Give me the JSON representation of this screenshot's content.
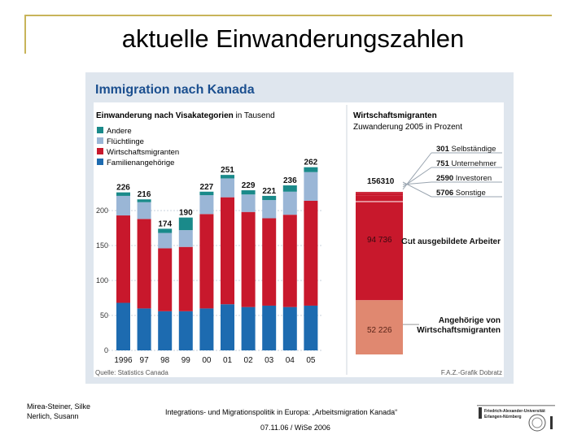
{
  "slide": {
    "title": "aktuelle Einwanderungszahlen",
    "footer_authors_line1": "Mirea-Steiner, Silke",
    "footer_authors_line2": "Nerlich, Susann",
    "footer_course": "Integrations- und Migrationspolitik in Europa: „Arbeitsmigration Kanada“",
    "footer_date": "07.11.06 / WiSe 2006",
    "logo_line1": "Friedrich-Alexander-Universität",
    "logo_line2": "Erlangen-Nürnberg"
  },
  "colors": {
    "andere": "#1a8a8a",
    "fluechtlinge": "#9ab6d6",
    "wirtschaftsmigranten": "#c8182c",
    "familienangehoerige": "#1d6bb0",
    "angehoerige_bar": "#e08870",
    "figure_bg": "#dfe6ee",
    "title_blue": "#1b4f8f"
  },
  "chart_data": [
    {
      "type": "bar",
      "figure_title": "Immigration nach Kanada",
      "title": "Einwanderung nach Visakategorien",
      "title_unit": "in Tausend",
      "categories": [
        "1996",
        "97",
        "98",
        "99",
        "00",
        "01",
        "02",
        "03",
        "04",
        "05"
      ],
      "series": [
        {
          "name": "Familienangehörige",
          "values": [
            68,
            60,
            56,
            56,
            60,
            66,
            62,
            64,
            62,
            64
          ]
        },
        {
          "name": "Wirtschaftsmigranten",
          "values": [
            125,
            128,
            90,
            92,
            135,
            153,
            136,
            125,
            132,
            150
          ]
        },
        {
          "name": "Flüchtlinge",
          "values": [
            28,
            24,
            22,
            24,
            27,
            27,
            25,
            26,
            33,
            41
          ]
        },
        {
          "name": "Andere",
          "values": [
            5,
            4,
            6,
            18,
            5,
            5,
            6,
            6,
            9,
            7
          ]
        }
      ],
      "totals": [
        226,
        216,
        174,
        190,
        227,
        251,
        229,
        221,
        236,
        262
      ],
      "legend": [
        "Andere",
        "Flüchtlinge",
        "Wirtschaftsmigranten",
        "Familienangehörige"
      ],
      "yticks": [
        0,
        50,
        100,
        150,
        200
      ],
      "ylim": [
        0,
        270
      ],
      "source": "Quelle: Statistics Canada"
    },
    {
      "type": "bar",
      "title": "Wirtschaftsmigranten",
      "subtitle": "Zuwanderung 2005 in Prozent",
      "total_label": "156310",
      "stacked_segments": [
        {
          "name": "Angehörige von Wirtschaftsmigranten",
          "value": 52226,
          "label_value": "52 226",
          "label_line1": "Angehörige von",
          "label_line2": "Wirtschaftsmigranten"
        },
        {
          "name": "Gut ausgebildete Arbeiter",
          "value": 94736,
          "label_value": "94 736",
          "label_line1": "Gut ausgebildete Arbeiter"
        },
        {
          "name": "Sonstige",
          "value": 5706,
          "label_value": "5706",
          "label_word": "Sonstige"
        },
        {
          "name": "Investoren",
          "value": 2590,
          "label_value": "2590",
          "label_word": "Investoren"
        },
        {
          "name": "Unternehmer",
          "value": 751,
          "label_value": "751",
          "label_word": "Unternehmer"
        },
        {
          "name": "Selbständige",
          "value": 301,
          "label_value": "301",
          "label_word": "Selbständige"
        }
      ],
      "credit": "F.A.Z.-Grafik Dobratz"
    }
  ]
}
